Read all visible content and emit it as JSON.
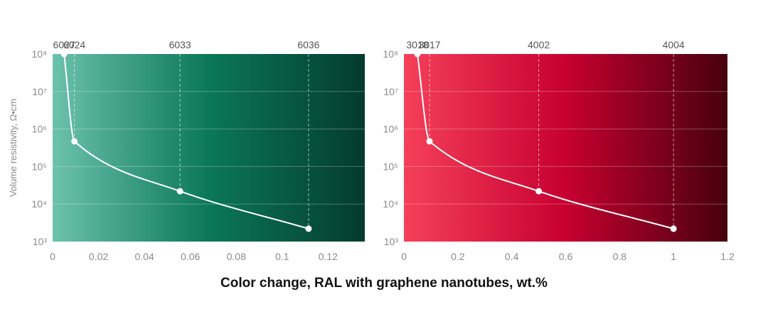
{
  "xlabel": "Color change, RAL with graphene nanotubes, wt.%",
  "chart_data": [
    {
      "type": "line",
      "name": "green",
      "ylabel": "Volume resistivity, Ω•cm",
      "yscale": "log",
      "ylim": [
        1000,
        100000000
      ],
      "xlim": [
        0,
        0.136
      ],
      "xticks": [
        "0",
        "0.02",
        "0.04",
        "0.06",
        "0.08",
        "0.1",
        "0.12"
      ],
      "xtick_values": [
        0,
        0.02,
        0.04,
        0.06,
        0.08,
        0.1,
        0.12
      ],
      "gradient": [
        "#6cc2ad",
        "#0b7759",
        "#043b2f"
      ],
      "points": [
        {
          "x": 0.005,
          "y": 100000000,
          "label": "6027"
        },
        {
          "x": 0.0095,
          "y": 470000,
          "label": "6024"
        },
        {
          "x": 0.0555,
          "y": 22000,
          "label": "6033"
        },
        {
          "x": 0.1115,
          "y": 2200,
          "label": "6036"
        }
      ]
    },
    {
      "type": "line",
      "name": "red",
      "ylabel": "",
      "yscale": "log",
      "ylim": [
        1000,
        100000000
      ],
      "xlim": [
        0,
        1.2
      ],
      "xticks": [
        "0",
        "0.2",
        "0.4",
        "0.6",
        "0.8",
        "1",
        "1.2"
      ],
      "xtick_values": [
        0,
        0.2,
        0.4,
        0.6,
        0.8,
        1,
        1.2
      ],
      "gradient": [
        "#f54059",
        "#c70031",
        "#47000c"
      ],
      "points": [
        {
          "x": 0.05,
          "y": 100000000,
          "label": "3018"
        },
        {
          "x": 0.095,
          "y": 470000,
          "label": "3017"
        },
        {
          "x": 0.5,
          "y": 22000,
          "label": "4002"
        },
        {
          "x": 1.0,
          "y": 2200,
          "label": "4004"
        }
      ]
    }
  ]
}
